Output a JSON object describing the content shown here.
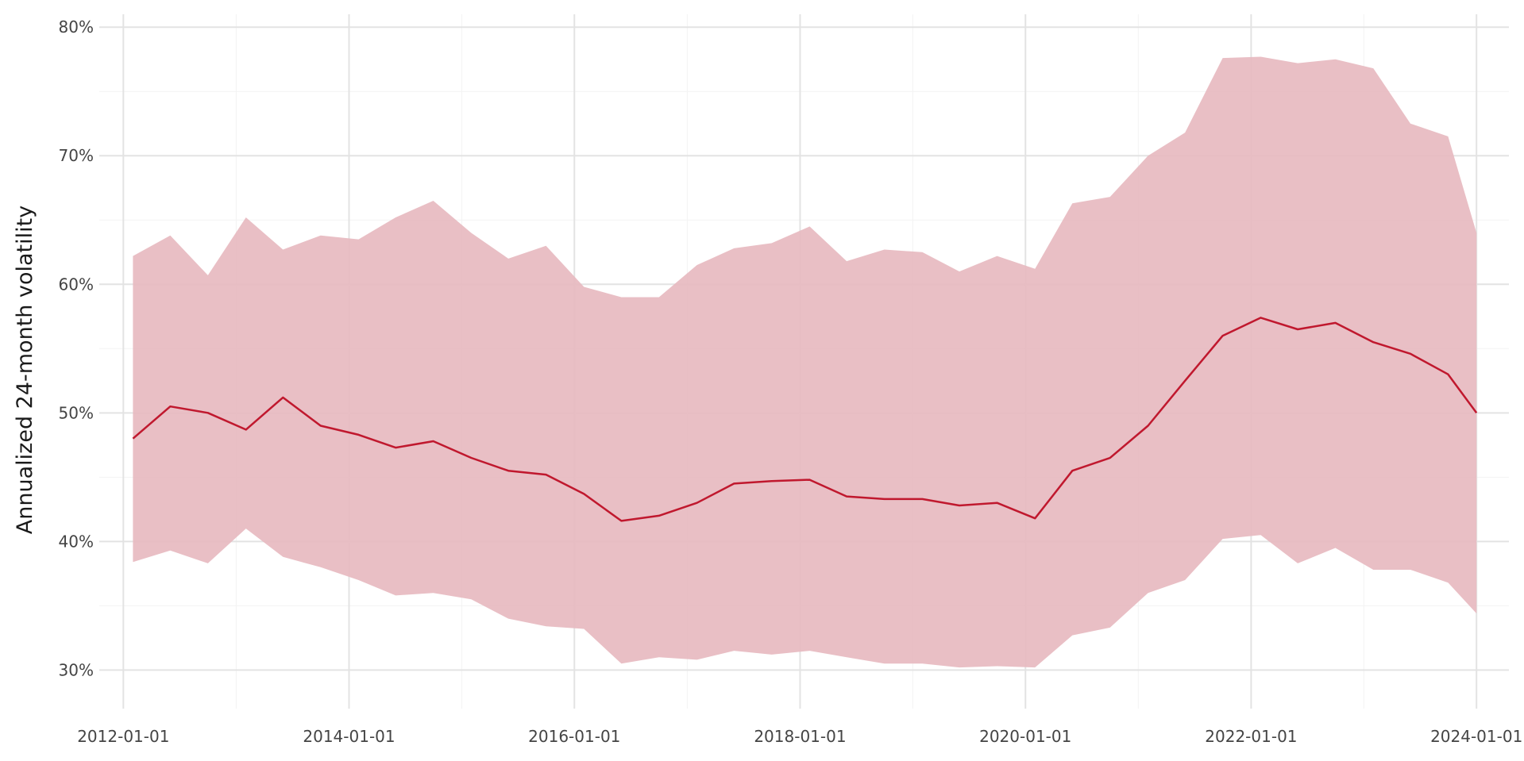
{
  "chart_data": {
    "type": "area",
    "title": "",
    "xlabel": "",
    "ylabel": "Annualized 24-month volatility",
    "x_axis": "date",
    "xlim": [
      "2011-10-15",
      "2024-04-15"
    ],
    "ylim": [
      0.27,
      0.81
    ],
    "x_ticks": [
      "2012-01-01",
      "2014-01-01",
      "2016-01-01",
      "2018-01-01",
      "2020-01-01",
      "2022-01-01",
      "2024-01-01"
    ],
    "y_ticks": [
      0.3,
      0.4,
      0.5,
      0.6,
      0.7,
      0.8
    ],
    "y_tick_labels": [
      "30%",
      "40%",
      "50%",
      "60%",
      "70%",
      "80%"
    ],
    "grid": true,
    "legend": "none",
    "colors": {
      "line": "#c0182e",
      "band": "#e7b8bf",
      "grid_major": "#e3e3e3",
      "grid_minor": "#f3f3f3"
    },
    "x": [
      "2012-02-01",
      "2012-06-01",
      "2012-10-01",
      "2013-02-01",
      "2013-06-01",
      "2013-10-01",
      "2014-02-01",
      "2014-06-01",
      "2014-10-01",
      "2015-02-01",
      "2015-06-01",
      "2015-10-01",
      "2016-02-01",
      "2016-06-01",
      "2016-10-01",
      "2017-02-01",
      "2017-06-01",
      "2017-10-01",
      "2018-02-01",
      "2018-06-01",
      "2018-10-01",
      "2019-02-01",
      "2019-06-01",
      "2019-10-01",
      "2020-02-01",
      "2020-06-01",
      "2020-10-01",
      "2021-02-01",
      "2021-06-01",
      "2021-10-01",
      "2022-02-01",
      "2022-06-01",
      "2022-10-01",
      "2023-02-01",
      "2023-06-01",
      "2023-10-01",
      "2024-01-01"
    ],
    "series": [
      {
        "name": "",
        "kind": "line",
        "values": [
          0.48,
          0.505,
          0.5,
          0.487,
          0.512,
          0.49,
          0.483,
          0.473,
          0.478,
          0.465,
          0.455,
          0.452,
          0.437,
          0.416,
          0.42,
          0.43,
          0.445,
          0.447,
          0.448,
          0.435,
          0.433,
          0.433,
          0.428,
          0.43,
          0.418,
          0.455,
          0.465,
          0.49,
          0.525,
          0.56,
          0.574,
          0.565,
          0.57,
          0.555,
          0.546,
          0.53,
          0.5
        ]
      },
      {
        "name": "",
        "kind": "band_upper",
        "values": [
          0.622,
          0.638,
          0.607,
          0.652,
          0.627,
          0.638,
          0.635,
          0.652,
          0.665,
          0.64,
          0.62,
          0.63,
          0.598,
          0.59,
          0.59,
          0.615,
          0.628,
          0.632,
          0.645,
          0.618,
          0.627,
          0.625,
          0.61,
          0.622,
          0.612,
          0.663,
          0.668,
          0.7,
          0.718,
          0.776,
          0.777,
          0.772,
          0.775,
          0.768,
          0.725,
          0.715,
          0.64
        ]
      },
      {
        "name": "",
        "kind": "band_lower",
        "values": [
          0.384,
          0.393,
          0.383,
          0.41,
          0.388,
          0.38,
          0.37,
          0.358,
          0.36,
          0.355,
          0.34,
          0.334,
          0.332,
          0.305,
          0.31,
          0.308,
          0.315,
          0.312,
          0.315,
          0.31,
          0.305,
          0.305,
          0.302,
          0.303,
          0.302,
          0.327,
          0.333,
          0.36,
          0.37,
          0.402,
          0.405,
          0.383,
          0.395,
          0.378,
          0.378,
          0.368,
          0.344
        ]
      }
    ]
  }
}
